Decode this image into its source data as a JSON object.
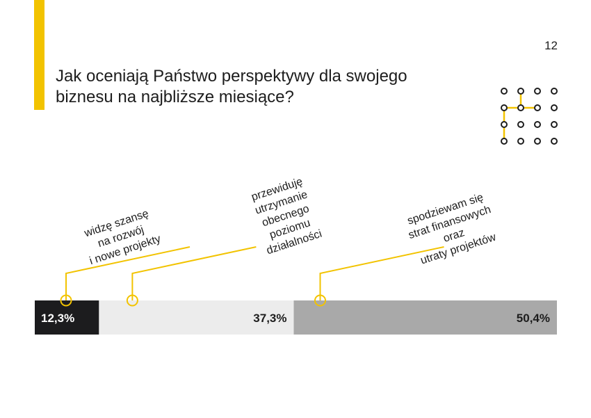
{
  "page_number": "12",
  "title": "Jak oceniają Państwo perspektywy dla swojego biznesu na najbliższe miesiące?",
  "colors": {
    "accent": "#f2c300",
    "dark": "#1c1c1e",
    "light": "#ececec",
    "mid": "#a9a9a9",
    "text": "#1d1d1d"
  },
  "logo_icon": "dot-grid-path-icon",
  "chart_data": {
    "type": "bar",
    "orientation": "horizontal-stacked",
    "categories": [
      "widzę szansę na rozwój i nowe projekty",
      "przewiduję utrzymanie obecnego poziomu działalności",
      "spodziewam się strat finansowych oraz utraty projektów"
    ],
    "values": [
      12.3,
      37.3,
      50.4
    ],
    "value_labels": [
      "12,3%",
      "37,3%",
      "50,4%"
    ],
    "label_lines": [
      [
        "widzę szansę",
        "na rozwój",
        "i nowe projekty"
      ],
      [
        "przewiduję",
        "utrzymanie",
        "obecnego",
        "poziomu",
        "działalności"
      ],
      [
        "spodziewam się",
        "strat finansowych",
        "oraz",
        "utraty projektów"
      ]
    ],
    "segment_colors": [
      "#1c1c1e",
      "#ececec",
      "#a9a9a9"
    ],
    "value_label_colors": [
      "#ffffff",
      "#1d1d1d",
      "#1d1d1d"
    ],
    "title": "",
    "xlabel": "",
    "ylabel": "",
    "xlim": [
      0,
      100
    ],
    "grid": false,
    "legend": "none"
  }
}
